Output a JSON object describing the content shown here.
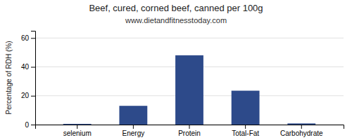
{
  "chart_data": {
    "type": "bar",
    "title": "Beef, cured, corned beef, canned per 100g",
    "subtitle": "www.dietandfitnesstoday.com",
    "categories": [
      "selenium",
      "Energy",
      "Protein",
      "Total-Fat",
      "Carbohydrate"
    ],
    "values": [
      0.5,
      13,
      48,
      23.5,
      0.8
    ],
    "color": "#2d4a8a",
    "ylabel": "Percentage of RDH (%)",
    "ylim": [
      0,
      65
    ],
    "yticks": [
      0,
      20,
      40,
      60
    ],
    "grid": true
  }
}
